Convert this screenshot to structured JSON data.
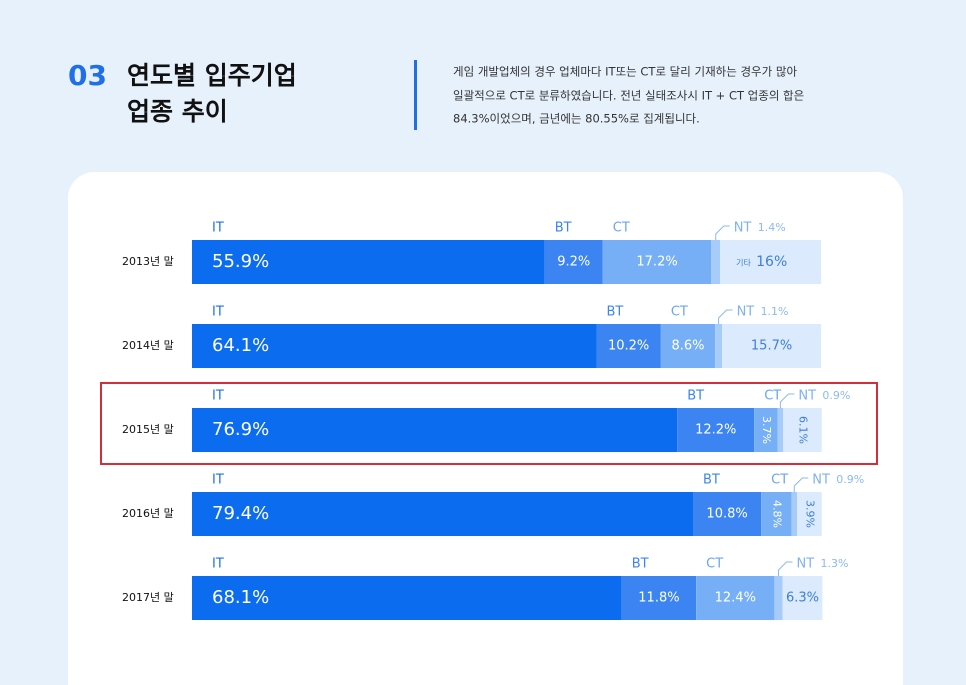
{
  "chart_data": {
    "type": "stacked-bar-horizontal",
    "section_number": "03",
    "title_lines": [
      "연도별 입주기업",
      "업종 추이"
    ],
    "description": [
      "게임 개발업체의 경우 업체마다 IT또는 CT로 달리 기재하는 경우가 많아",
      "일괄적으로 CT로 분류하였습니다. 전년 실태조사시 IT + CT 업종의 합은",
      "84.3%이었으며, 금년에는 80.55%로 집계됩니다."
    ],
    "categories": [
      "2013년 말",
      "2014년 말",
      "2015년 말",
      "2016년 말",
      "2017년 말"
    ],
    "series": [
      {
        "name": "IT",
        "color": "#0b6cf0",
        "values": [
          55.9,
          64.1,
          76.9,
          79.4,
          68.1
        ],
        "value_labels": [
          "55.9%",
          "64.1%",
          "76.9%",
          "79.4%",
          "68.1%"
        ]
      },
      {
        "name": "BT",
        "color": "#3c84f1",
        "values": [
          9.2,
          10.2,
          12.2,
          10.8,
          11.8
        ],
        "value_labels": [
          "9.2%",
          "10.2%",
          "12.2%",
          "10.8%",
          "11.8%"
        ]
      },
      {
        "name": "CT",
        "color": "#76aff6",
        "values": [
          17.2,
          8.6,
          3.7,
          4.8,
          12.4
        ],
        "value_labels": [
          "17.2%",
          "8.6%",
          "3.7%",
          "4.8%",
          "12.4%"
        ]
      },
      {
        "name": "NT",
        "color": "#a8ccf9",
        "values": [
          1.4,
          1.1,
          0.9,
          0.9,
          1.3
        ],
        "value_labels": [
          "1.4%",
          "1.1%",
          "0.9%",
          "0.9%",
          "1.3%"
        ]
      },
      {
        "name": "기타",
        "color": "#dbeafd",
        "values": [
          16,
          15.7,
          6.1,
          3.9,
          6.3
        ],
        "value_labels": [
          "16%",
          "15.7%",
          "6.1%",
          "3.9%",
          "6.3%"
        ]
      }
    ]
  }
}
